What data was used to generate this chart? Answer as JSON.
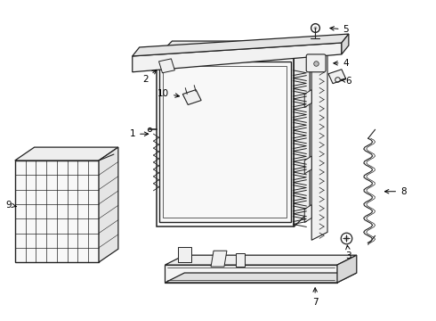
{
  "bg_color": "#ffffff",
  "line_color": "#222222",
  "fig_width": 4.9,
  "fig_height": 3.6,
  "dpi": 100,
  "label_fontsize": 7.5
}
